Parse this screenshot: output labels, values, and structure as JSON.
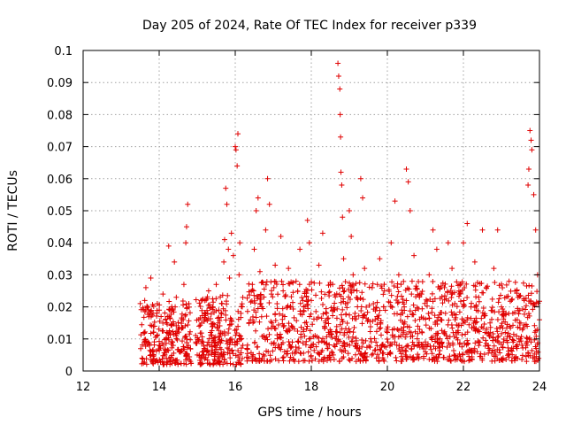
{
  "chart_data": {
    "type": "scatter",
    "title": "Day 205 of 2024, Rate Of TEC Index for receiver p339",
    "xlabel": "GPS time / hours",
    "ylabel": "ROTI / TECUs",
    "xlim": [
      12,
      24
    ],
    "ylim": [
      0,
      0.1
    ],
    "xticks": [
      12,
      14,
      16,
      18,
      20,
      22,
      24
    ],
    "yticks": [
      0,
      0.01,
      0.02,
      0.03,
      0.04,
      0.05,
      0.06,
      0.07,
      0.08,
      0.09,
      0.1
    ],
    "xtick_labels": [
      "12",
      "14",
      "16",
      "18",
      "20",
      "22",
      "24"
    ],
    "ytick_labels": [
      "0",
      "0.01",
      "0.02",
      "0.03",
      "0.04",
      "0.05",
      "0.06",
      "0.07",
      "0.08",
      "0.09",
      "0.1"
    ],
    "grid": true,
    "marker": "+",
    "color": "#e00000",
    "series": [
      {
        "name": "ROTI",
        "points": [
          [
            13.55,
            0.004
          ],
          [
            13.6,
            0.012
          ],
          [
            13.62,
            0.022
          ],
          [
            13.65,
            0.026
          ],
          [
            13.7,
            0.009
          ],
          [
            13.75,
            0.018
          ],
          [
            13.78,
            0.029
          ],
          [
            13.82,
            0.006
          ],
          [
            13.88,
            0.014
          ],
          [
            13.95,
            0.021
          ],
          [
            14.0,
            0.008
          ],
          [
            14.05,
            0.017
          ],
          [
            14.1,
            0.024
          ],
          [
            14.15,
            0.005
          ],
          [
            14.2,
            0.012
          ],
          [
            14.25,
            0.039
          ],
          [
            14.3,
            0.019
          ],
          [
            14.35,
            0.009
          ],
          [
            14.4,
            0.034
          ],
          [
            14.45,
            0.023
          ],
          [
            14.5,
            0.013
          ],
          [
            14.55,
            0.006
          ],
          [
            14.6,
            0.016
          ],
          [
            14.65,
            0.027
          ],
          [
            14.7,
            0.04
          ],
          [
            14.72,
            0.045
          ],
          [
            14.75,
            0.052
          ],
          [
            14.78,
            0.021
          ],
          [
            14.82,
            0.007
          ],
          [
            15.0,
            0.005
          ],
          [
            15.05,
            0.014
          ],
          [
            15.1,
            0.022
          ],
          [
            15.15,
            0.009
          ],
          [
            15.2,
            0.018
          ],
          [
            15.25,
            0.006
          ],
          [
            15.3,
            0.025
          ],
          [
            15.35,
            0.012
          ],
          [
            15.4,
            0.02
          ],
          [
            15.45,
            0.008
          ],
          [
            15.5,
            0.027
          ],
          [
            15.55,
            0.015
          ],
          [
            15.6,
            0.005
          ],
          [
            15.65,
            0.021
          ],
          [
            15.7,
            0.034
          ],
          [
            15.72,
            0.041
          ],
          [
            15.75,
            0.057
          ],
          [
            15.78,
            0.052
          ],
          [
            15.82,
            0.038
          ],
          [
            15.85,
            0.029
          ],
          [
            15.9,
            0.043
          ],
          [
            15.95,
            0.036
          ],
          [
            16.0,
            0.07
          ],
          [
            16.02,
            0.069
          ],
          [
            16.05,
            0.064
          ],
          [
            16.07,
            0.074
          ],
          [
            16.1,
            0.03
          ],
          [
            16.12,
            0.04
          ],
          [
            16.15,
            0.018
          ],
          [
            16.2,
            0.008
          ],
          [
            16.35,
            0.004
          ],
          [
            16.4,
            0.016
          ],
          [
            16.45,
            0.027
          ],
          [
            16.5,
            0.038
          ],
          [
            16.55,
            0.05
          ],
          [
            16.6,
            0.054
          ],
          [
            16.65,
            0.031
          ],
          [
            16.7,
            0.02
          ],
          [
            16.75,
            0.011
          ],
          [
            16.8,
            0.044
          ],
          [
            16.85,
            0.06
          ],
          [
            16.9,
            0.052
          ],
          [
            16.95,
            0.024
          ],
          [
            17.0,
            0.014
          ],
          [
            17.05,
            0.033
          ],
          [
            17.1,
            0.021
          ],
          [
            17.2,
            0.042
          ],
          [
            17.3,
            0.017
          ],
          [
            17.4,
            0.032
          ],
          [
            17.5,
            0.009
          ],
          [
            17.6,
            0.028
          ],
          [
            17.7,
            0.038
          ],
          [
            17.8,
            0.013
          ],
          [
            17.9,
            0.047
          ],
          [
            17.95,
            0.04
          ],
          [
            18.0,
            0.022
          ],
          [
            18.1,
            0.011
          ],
          [
            18.2,
            0.033
          ],
          [
            18.3,
            0.043
          ],
          [
            18.4,
            0.018
          ],
          [
            18.5,
            0.027
          ],
          [
            18.6,
            0.008
          ],
          [
            18.7,
            0.096
          ],
          [
            18.72,
            0.092
          ],
          [
            18.75,
            0.088
          ],
          [
            18.76,
            0.08
          ],
          [
            18.77,
            0.073
          ],
          [
            18.78,
            0.062
          ],
          [
            18.8,
            0.058
          ],
          [
            18.82,
            0.048
          ],
          [
            18.85,
            0.035
          ],
          [
            18.9,
            0.021
          ],
          [
            18.95,
            0.012
          ],
          [
            19.0,
            0.05
          ],
          [
            19.05,
            0.042
          ],
          [
            19.1,
            0.03
          ],
          [
            19.15,
            0.018
          ],
          [
            19.2,
            0.025
          ],
          [
            19.3,
            0.06
          ],
          [
            19.35,
            0.054
          ],
          [
            19.4,
            0.032
          ],
          [
            19.5,
            0.016
          ],
          [
            19.6,
            0.026
          ],
          [
            19.7,
            0.009
          ],
          [
            19.8,
            0.035
          ],
          [
            19.9,
            0.02
          ],
          [
            20.0,
            0.012
          ],
          [
            20.1,
            0.04
          ],
          [
            20.2,
            0.053
          ],
          [
            20.3,
            0.03
          ],
          [
            20.4,
            0.018
          ],
          [
            20.5,
            0.063
          ],
          [
            20.55,
            0.059
          ],
          [
            20.6,
            0.05
          ],
          [
            20.65,
            0.028
          ],
          [
            20.7,
            0.036
          ],
          [
            20.8,
            0.014
          ],
          [
            20.9,
            0.024
          ],
          [
            21.0,
            0.008
          ],
          [
            21.1,
            0.03
          ],
          [
            21.2,
            0.044
          ],
          [
            21.3,
            0.038
          ],
          [
            21.4,
            0.016
          ],
          [
            21.5,
            0.026
          ],
          [
            21.6,
            0.04
          ],
          [
            21.7,
            0.032
          ],
          [
            21.8,
            0.012
          ],
          [
            21.9,
            0.024
          ],
          [
            22.0,
            0.04
          ],
          [
            22.1,
            0.046
          ],
          [
            22.2,
            0.02
          ],
          [
            22.3,
            0.034
          ],
          [
            22.4,
            0.009
          ],
          [
            22.5,
            0.044
          ],
          [
            22.6,
            0.026
          ],
          [
            22.7,
            0.015
          ],
          [
            22.8,
            0.032
          ],
          [
            22.9,
            0.044
          ],
          [
            23.0,
            0.02
          ],
          [
            23.1,
            0.012
          ],
          [
            23.2,
            0.028
          ],
          [
            23.3,
            0.018
          ],
          [
            23.4,
            0.025
          ],
          [
            23.5,
            0.01
          ],
          [
            23.6,
            0.022
          ],
          [
            23.7,
            0.058
          ],
          [
            23.72,
            0.063
          ],
          [
            23.75,
            0.075
          ],
          [
            23.78,
            0.072
          ],
          [
            23.8,
            0.069
          ],
          [
            23.85,
            0.055
          ],
          [
            23.9,
            0.044
          ],
          [
            23.95,
            0.03
          ],
          [
            24.0,
            0.016
          ]
        ],
        "density_segments": [
          {
            "range": [
              13.5,
              14.85
            ],
            "base": [
              0.002,
              0.022
            ],
            "count": 240
          },
          {
            "range": [
              14.95,
              16.2
            ],
            "base": [
              0.002,
              0.024
            ],
            "count": 240
          },
          {
            "range": [
              16.3,
              24.0
            ],
            "base": [
              0.003,
              0.028
            ],
            "count": 1200
          }
        ]
      }
    ]
  }
}
